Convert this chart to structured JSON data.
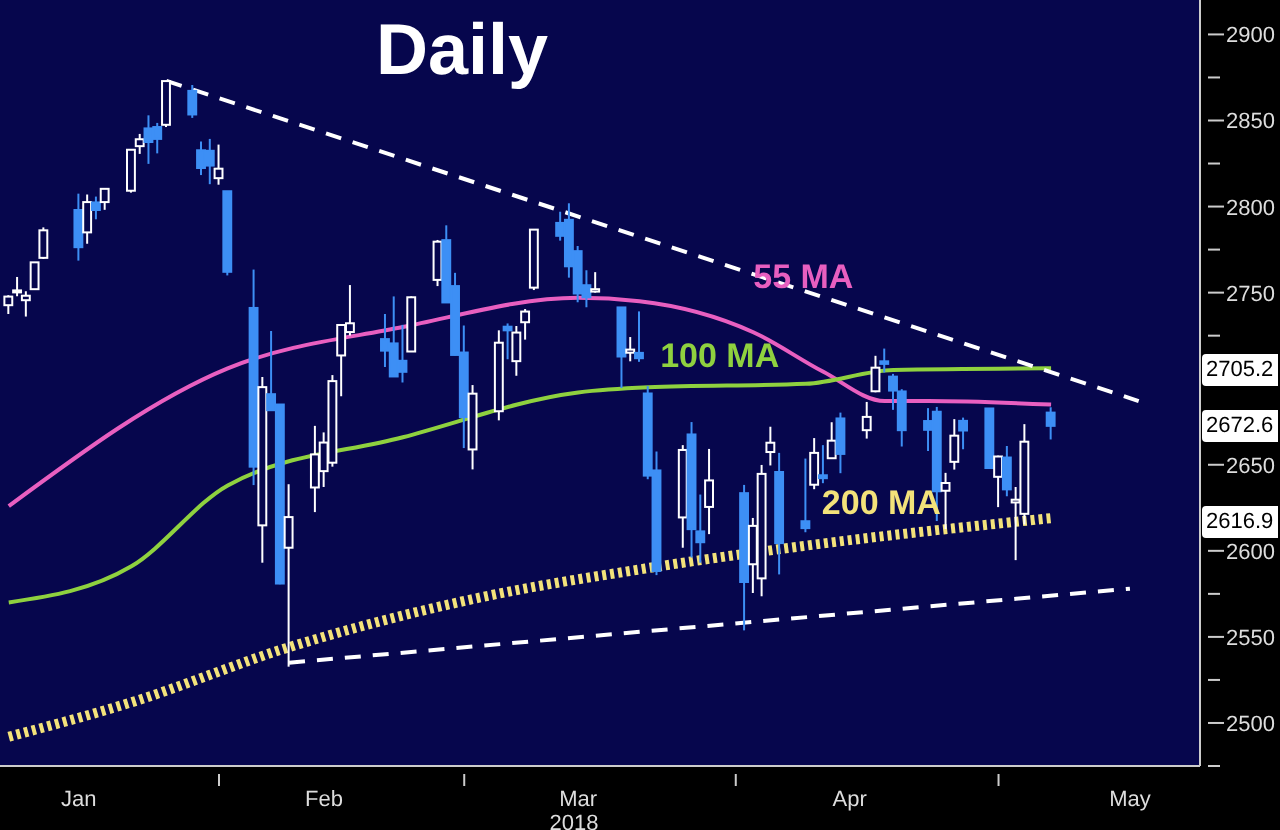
{
  "chart_data": {
    "type": "candlestick",
    "title": "Daily",
    "xlabel": "2018",
    "x": [
      "2018-01-08",
      "2018-01-09",
      "2018-01-10",
      "2018-01-11",
      "2018-01-12",
      "2018-01-16",
      "2018-01-17",
      "2018-01-18",
      "2018-01-19",
      "2018-01-22",
      "2018-01-23",
      "2018-01-24",
      "2018-01-25",
      "2018-01-26",
      "2018-01-29",
      "2018-01-30",
      "2018-01-31",
      "2018-02-01",
      "2018-02-02",
      "2018-02-05",
      "2018-02-06",
      "2018-02-07",
      "2018-02-08",
      "2018-02-09",
      "2018-02-12",
      "2018-02-13",
      "2018-02-14",
      "2018-02-15",
      "2018-02-16",
      "2018-02-20",
      "2018-02-21",
      "2018-02-22",
      "2018-02-23",
      "2018-02-26",
      "2018-02-27",
      "2018-02-28",
      "2018-03-01",
      "2018-03-02",
      "2018-03-05",
      "2018-03-06",
      "2018-03-07",
      "2018-03-08",
      "2018-03-09",
      "2018-03-12",
      "2018-03-13",
      "2018-03-14",
      "2018-03-15",
      "2018-03-16",
      "2018-03-19",
      "2018-03-20",
      "2018-03-21",
      "2018-03-22",
      "2018-03-23",
      "2018-03-26",
      "2018-03-27",
      "2018-03-28",
      "2018-03-29",
      "2018-04-02",
      "2018-04-03",
      "2018-04-04",
      "2018-04-05",
      "2018-04-06",
      "2018-04-09",
      "2018-04-10",
      "2018-04-11",
      "2018-04-12",
      "2018-04-13",
      "2018-04-16",
      "2018-04-17",
      "2018-04-18",
      "2018-04-19",
      "2018-04-20",
      "2018-04-23",
      "2018-04-24",
      "2018-04-25",
      "2018-04-26",
      "2018-04-27",
      "2018-04-30",
      "2018-05-01",
      "2018-05-02",
      "2018-05-03",
      "2018-05-04",
      "2018-05-07"
    ],
    "ohlc": [
      [
        2742.7,
        2748.5,
        2737.6,
        2747.7
      ],
      [
        2751.2,
        2759.1,
        2747.9,
        2751.3
      ],
      [
        2745.6,
        2750.8,
        2736.1,
        2748.2
      ],
      [
        2752.0,
        2767.6,
        2752.0,
        2767.6
      ],
      [
        2770.2,
        2787.9,
        2769.6,
        2786.2
      ],
      [
        2798.0,
        2807.5,
        2768.6,
        2776.4
      ],
      [
        2785.0,
        2807.0,
        2778.4,
        2802.6
      ],
      [
        2802.4,
        2805.8,
        2792.6,
        2798.0
      ],
      [
        2802.6,
        2810.3,
        2798.1,
        2810.3
      ],
      [
        2809.2,
        2833.0,
        2808.1,
        2833.0
      ],
      [
        2835.1,
        2842.2,
        2830.6,
        2839.1
      ],
      [
        2845.4,
        2853.0,
        2824.8,
        2837.5
      ],
      [
        2846.2,
        2848.6,
        2830.9,
        2839.3
      ],
      [
        2847.5,
        2873.0,
        2846.2,
        2872.9
      ],
      [
        2867.2,
        2870.6,
        2851.5,
        2853.5
      ],
      [
        2832.7,
        2837.8,
        2818.3,
        2822.4
      ],
      [
        2832.4,
        2839.3,
        2813.0,
        2823.8
      ],
      [
        2816.5,
        2836.0,
        2812.7,
        2822.0
      ],
      [
        2808.9,
        2808.9,
        2760.0,
        2762.1
      ],
      [
        2741.1,
        2763.4,
        2638.2,
        2648.9
      ],
      [
        2614.8,
        2701.0,
        2593.1,
        2695.1
      ],
      [
        2691.0,
        2727.7,
        2681.3,
        2681.7
      ],
      [
        2685.0,
        2685.3,
        2580.6,
        2581.0
      ],
      [
        2601.8,
        2638.7,
        2532.7,
        2619.6
      ],
      [
        2636.8,
        2672.6,
        2622.5,
        2656.0
      ],
      [
        2646.3,
        2668.8,
        2637.1,
        2662.9
      ],
      [
        2651.2,
        2702.1,
        2648.9,
        2698.6
      ],
      [
        2713.5,
        2731.5,
        2689.8,
        2731.2
      ],
      [
        2727.1,
        2754.4,
        2725.1,
        2732.2
      ],
      [
        2723.0,
        2737.6,
        2706.8,
        2716.3
      ],
      [
        2720.5,
        2747.8,
        2701.3,
        2701.3
      ],
      [
        2710.4,
        2731.3,
        2697.8,
        2704.0
      ],
      [
        2715.8,
        2747.8,
        2715.8,
        2747.3
      ],
      [
        2757.4,
        2780.6,
        2753.8,
        2779.6
      ],
      [
        2780.5,
        2789.1,
        2744.2,
        2744.3
      ],
      [
        2753.8,
        2761.5,
        2713.5,
        2713.8
      ],
      [
        2715.2,
        2730.9,
        2659.7,
        2677.7
      ],
      [
        2658.9,
        2696.3,
        2647.3,
        2691.3
      ],
      [
        2681.1,
        2728.1,
        2675.8,
        2720.9
      ],
      [
        2730.2,
        2732.1,
        2711.3,
        2728.1
      ],
      [
        2710.2,
        2730.6,
        2701.7,
        2726.8
      ],
      [
        2732.8,
        2740.5,
        2722.7,
        2739.0
      ],
      [
        2752.9,
        2786.6,
        2751.5,
        2786.6
      ],
      [
        2790.5,
        2797.0,
        2780.2,
        2783.0
      ],
      [
        2792.3,
        2801.9,
        2758.7,
        2765.3
      ],
      [
        2774.1,
        2777.1,
        2744.4,
        2749.5
      ],
      [
        2754.3,
        2763.0,
        2741.5,
        2747.3
      ],
      [
        2750.6,
        2761.9,
        2750.0,
        2752.0
      ],
      [
        2741.4,
        2741.4,
        2694.6,
        2712.9
      ],
      [
        2715.1,
        2724.2,
        2710.1,
        2716.9
      ],
      [
        2715.0,
        2739.1,
        2709.8,
        2711.9
      ],
      [
        2691.4,
        2695.7,
        2641.6,
        2643.7
      ],
      [
        2646.7,
        2657.7,
        2585.9,
        2588.3
      ],
      [
        2619.4,
        2661.4,
        2601.8,
        2658.6
      ],
      [
        2667.6,
        2674.8,
        2596.1,
        2612.6
      ],
      [
        2611.3,
        2632.7,
        2593.1,
        2605.0
      ],
      [
        2625.5,
        2659.2,
        2609.7,
        2640.9
      ],
      [
        2633.5,
        2638.3,
        2553.8,
        2581.9
      ],
      [
        2592.2,
        2619.1,
        2575.5,
        2614.5
      ],
      [
        2584.0,
        2649.9,
        2573.6,
        2644.7
      ],
      [
        2657.4,
        2672.1,
        2649.6,
        2662.8
      ],
      [
        2645.8,
        2656.9,
        2586.3,
        2604.5
      ],
      [
        2617.2,
        2653.6,
        2610.8,
        2613.2
      ],
      [
        2638.4,
        2665.5,
        2635.8,
        2656.9
      ],
      [
        2643.9,
        2661.4,
        2639.3,
        2642.2
      ],
      [
        2653.8,
        2674.7,
        2653.8,
        2664.0
      ],
      [
        2676.9,
        2680.3,
        2645.1,
        2656.3
      ],
      [
        2670.1,
        2686.5,
        2665.2,
        2677.8
      ],
      [
        2692.7,
        2713.3,
        2692.1,
        2706.4
      ],
      [
        2710.1,
        2717.5,
        2703.6,
        2708.6
      ],
      [
        2701.2,
        2702.8,
        2681.9,
        2693.1
      ],
      [
        2692.6,
        2693.9,
        2660.6,
        2670.1
      ],
      [
        2675.4,
        2682.9,
        2658.0,
        2670.3
      ],
      [
        2680.8,
        2683.6,
        2617.3,
        2634.6
      ],
      [
        2634.9,
        2645.3,
        2612.7,
        2639.4
      ],
      [
        2651.7,
        2676.5,
        2647.2,
        2666.9
      ],
      [
        2675.5,
        2677.4,
        2659.0,
        2669.9
      ],
      [
        2682.7,
        2682.9,
        2648.0,
        2648.1
      ],
      [
        2643.0,
        2655.3,
        2625.4,
        2654.8
      ],
      [
        2654.2,
        2660.9,
        2631.7,
        2635.7
      ],
      [
        2628.1,
        2637.1,
        2594.6,
        2629.7
      ],
      [
        2621.5,
        2673.6,
        2615.3,
        2663.4
      ],
      [
        2680.3,
        2683.4,
        2664.7,
        2672.6
      ]
    ],
    "colors": [
      "#ffffff",
      "#ffffff",
      "#ffffff",
      "#ffffff",
      "#ffffff",
      "#3d8ff5",
      "#ffffff",
      "#3d8ff5",
      "#ffffff",
      "#ffffff",
      "#ffffff",
      "#3d8ff5",
      "#3d8ff5",
      "#ffffff",
      "#3d8ff5",
      "#3d8ff5",
      "#3d8ff5",
      "#ffffff",
      "#3d8ff5",
      "#3d8ff5",
      "#ffffff",
      "#3d8ff5",
      "#3d8ff5",
      "#ffffff",
      "#ffffff",
      "#ffffff",
      "#ffffff",
      "#ffffff",
      "#ffffff",
      "#3d8ff5",
      "#3d8ff5",
      "#3d8ff5",
      "#ffffff",
      "#ffffff",
      "#3d8ff5",
      "#3d8ff5",
      "#3d8ff5",
      "#ffffff",
      "#ffffff",
      "#3d8ff5",
      "#ffffff",
      "#ffffff",
      "#ffffff",
      "#3d8ff5",
      "#3d8ff5",
      "#3d8ff5",
      "#3d8ff5",
      "#ffffff",
      "#3d8ff5",
      "#ffffff",
      "#3d8ff5",
      "#3d8ff5",
      "#3d8ff5",
      "#ffffff",
      "#3d8ff5",
      "#3d8ff5",
      "#ffffff",
      "#3d8ff5",
      "#ffffff",
      "#ffffff",
      "#ffffff",
      "#3d8ff5",
      "#3d8ff5",
      "#ffffff",
      "#3d8ff5",
      "#ffffff",
      "#3d8ff5",
      "#ffffff",
      "#ffffff",
      "#3d8ff5",
      "#3d8ff5",
      "#3d8ff5",
      "#3d8ff5",
      "#3d8ff5",
      "#ffffff",
      "#ffffff",
      "#3d8ff5",
      "#3d8ff5",
      "#ffffff",
      "#3d8ff5",
      "#ffffff",
      "#ffffff",
      "#3d8ff5"
    ],
    "series": [
      {
        "type": "line",
        "name": "55 MA",
        "color": "#e85fc0",
        "line_style": "solid",
        "x": [
          "2018-01-08",
          "2018-02-02",
          "2018-02-22",
          "2018-03-14",
          "2018-03-21",
          "2018-04-03",
          "2018-04-11",
          "2018-04-18",
          "2018-04-23",
          "2018-05-07"
        ],
        "values": [
          2626,
          2706,
          2730,
          2747,
          2745,
          2727,
          2704,
          2687,
          2687,
          2685
        ]
      },
      {
        "type": "line",
        "name": "100 MA",
        "color": "#8fd13f",
        "line_style": "solid",
        "x": [
          "2018-01-08",
          "2018-01-22",
          "2018-02-02",
          "2018-02-22",
          "2018-03-14",
          "2018-03-22",
          "2018-04-09",
          "2018-04-19",
          "2018-05-07"
        ],
        "values": [
          2570,
          2591,
          2638,
          2666,
          2692,
          2695,
          2697,
          2705,
          2706
        ]
      },
      {
        "type": "line",
        "name": "200 MA",
        "color": "#f3e27a",
        "line_style": "dotted",
        "x": [
          "2018-01-08",
          "2018-01-22",
          "2018-02-09",
          "2018-03-02",
          "2018-03-22",
          "2018-04-09",
          "2018-05-07"
        ],
        "values": [
          2492,
          2512,
          2544,
          2572,
          2590,
          2603,
          2619
        ]
      },
      {
        "type": "line",
        "color": "#ffffff",
        "line_style": "dashed",
        "x": [
          "2018-01-26",
          "2018-05-17"
        ],
        "values": [
          2873,
          2687
        ]
      },
      {
        "type": "line",
        "color": "#ffffff",
        "line_style": "dashed",
        "x": [
          "2018-02-09",
          "2018-05-16"
        ],
        "values": [
          2535,
          2578
        ]
      }
    ],
    "annotations": [
      {
        "text": "2705.2",
        "y": 2705.2
      },
      {
        "text": "2672.6",
        "y": 2672.6
      },
      {
        "text": "2616.9",
        "y": 2616.9
      }
    ],
    "xlim": [
      "2018-01-07",
      "2018-05-24"
    ],
    "xticks": [
      {
        "value": "2018-01-16",
        "label": "Jan"
      },
      {
        "value": "2018-02-01",
        "label": null
      },
      {
        "value": "2018-02-13",
        "label": "Feb"
      },
      {
        "value": "2018-03-01",
        "label": null
      },
      {
        "value": "2018-03-14",
        "label": "Mar"
      },
      {
        "value": "2018-04-01",
        "label": null
      },
      {
        "value": "2018-04-14",
        "label": "Apr"
      },
      {
        "value": "2018-05-01",
        "label": null
      },
      {
        "value": "2018-05-16",
        "label": "May"
      }
    ],
    "ylim": [
      2475,
      2920
    ],
    "yticks": [
      {
        "value": 2475,
        "label": null
      },
      2500,
      {
        "value": 2525,
        "label": null
      },
      2550,
      {
        "value": 2575,
        "label": null
      },
      2600,
      {
        "value": 2625,
        "label": null
      },
      2650,
      {
        "value": 2675,
        "label": null
      },
      {
        "value": 2700,
        "label": null
      },
      {
        "value": 2725,
        "label": null
      },
      2750,
      {
        "value": 2775,
        "label": null
      },
      2800,
      {
        "value": 2825,
        "label": null
      },
      2850,
      {
        "value": 2875,
        "label": null
      },
      2900
    ],
    "grid": false,
    "legend": false
  }
}
